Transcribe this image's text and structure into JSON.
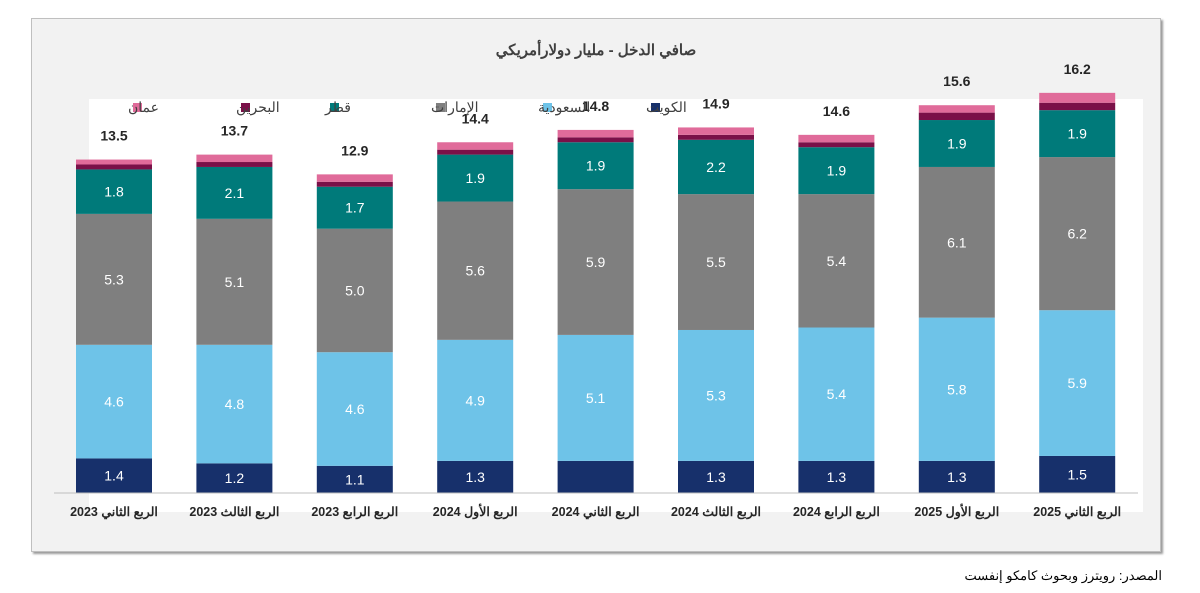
{
  "chart_data": {
    "type": "bar",
    "stacked": true,
    "title": "صافي الدخل - مليار دولارأمريكي",
    "categories": [
      "الربع الثاني 2023",
      "الربع الثالث 2023",
      "الربع الرابع 2023",
      "الربع الأول 2024",
      "الربع الثاني 2024",
      "الربع الثالث 2024",
      "الربع الرابع 2024",
      "الربع الأول 2025",
      "الربع الثاني 2025"
    ],
    "totals": [
      "13.5",
      "13.7",
      "12.9",
      "14.4",
      "14.8",
      "14.9",
      "14.6",
      "15.6",
      "16.2"
    ],
    "series": [
      {
        "name": "الكويت",
        "color": "#17306b",
        "values": [
          1.4,
          1.2,
          1.1,
          1.3,
          1.3,
          1.3,
          1.3,
          1.3,
          1.5
        ],
        "labels": [
          "1.4",
          "1.2",
          "1.1",
          "1.3",
          "",
          "1.3",
          "1.3",
          "1.3",
          "1.5"
        ]
      },
      {
        "name": "السعودية",
        "color": "#6ec3e8",
        "values": [
          4.6,
          4.8,
          4.6,
          4.9,
          5.1,
          5.3,
          5.4,
          5.8,
          5.9
        ],
        "labels": [
          "4.6",
          "4.8",
          "4.6",
          "4.9",
          "5.1",
          "5.3",
          "5.4",
          "5.8",
          "5.9"
        ]
      },
      {
        "name": "الإمارات",
        "color": "#7f7f7f",
        "values": [
          5.3,
          5.1,
          5.0,
          5.6,
          5.9,
          5.5,
          5.4,
          6.1,
          6.2
        ],
        "labels": [
          "5.3",
          "5.1",
          "5.0",
          "5.6",
          "5.9",
          "5.5",
          "5.4",
          "6.1",
          "6.2"
        ]
      },
      {
        "name": "قطر",
        "color": "#007a7a",
        "values": [
          1.8,
          2.1,
          1.7,
          1.9,
          1.9,
          2.2,
          1.9,
          1.9,
          1.9
        ],
        "labels": [
          "1.8",
          "2.1",
          "1.7",
          "1.9",
          "1.9",
          "2.2",
          "1.9",
          "1.9",
          "1.9"
        ]
      },
      {
        "name": "البحرين",
        "color": "#7a1048",
        "values": [
          0.2,
          0.2,
          0.2,
          0.2,
          0.2,
          0.2,
          0.2,
          0.3,
          0.3
        ],
        "labels": [
          "",
          "",
          "",
          "",
          "",
          "",
          "",
          "",
          ""
        ]
      },
      {
        "name": "عمان",
        "color": "#e06b9a",
        "values": [
          0.2,
          0.3,
          0.3,
          0.3,
          0.3,
          0.3,
          0.3,
          0.3,
          0.4
        ],
        "labels": [
          "",
          "",
          "",
          "",
          "",
          "",
          "",
          "",
          ""
        ]
      }
    ],
    "legend_order": [
      "الكويت",
      "السعودية",
      "الإمارات",
      "قطر",
      "البحرين",
      "عمان"
    ],
    "legend_position": "top",
    "ylim": [
      0,
      17.5
    ],
    "grid": false
  },
  "source": "المصدر: رويترز وبحوث كامكو إنفست"
}
